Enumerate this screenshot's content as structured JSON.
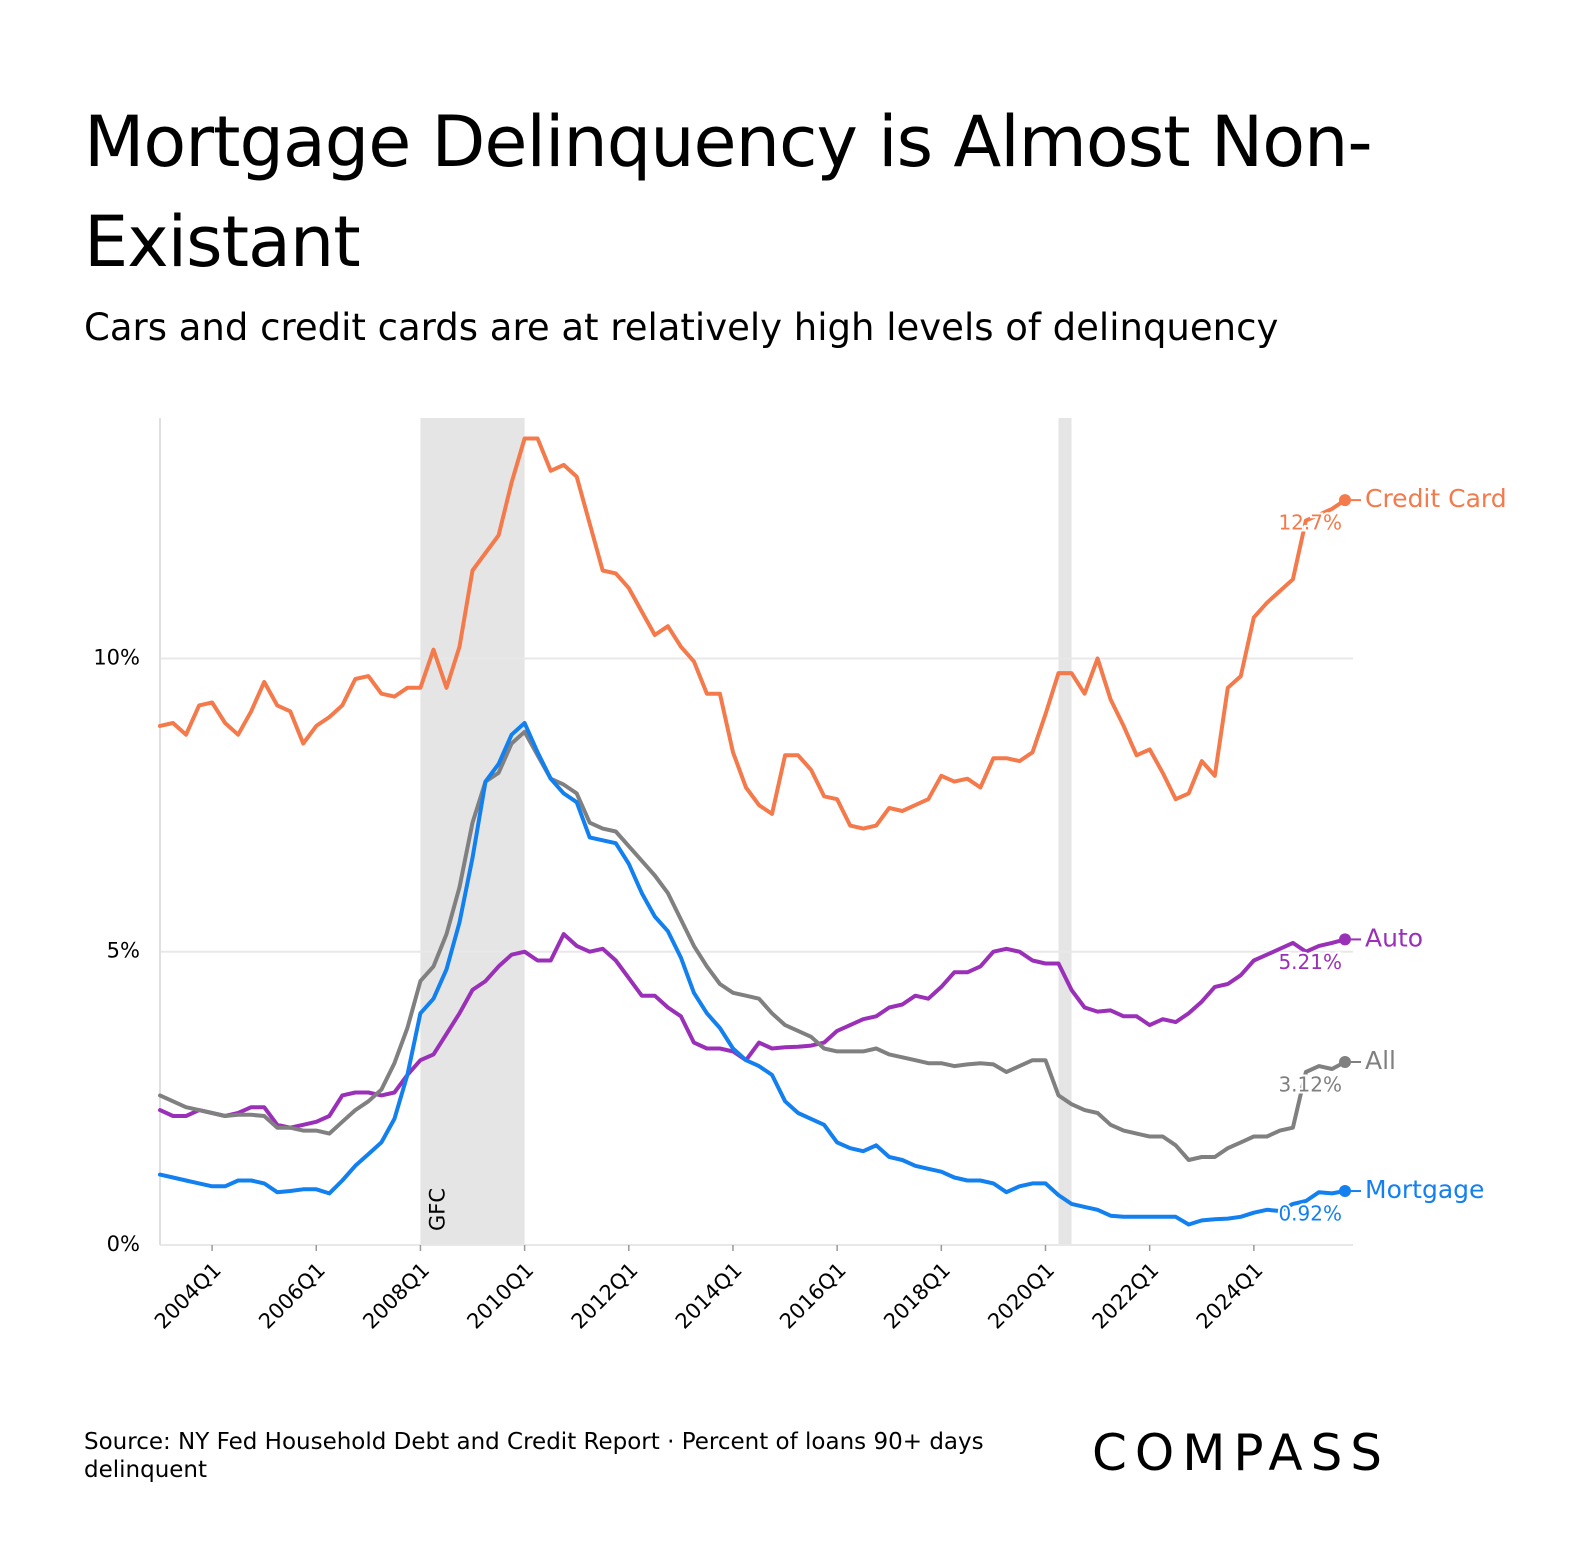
{
  "chart_data": {
    "type": "line",
    "title": "Mortgage Delinquency is Almost Non-Existant",
    "subtitle": "Cars and credit cards are at relatively high levels of delinquency",
    "source": "Source: NY Fed Household Debt and Credit Report · Percent of loans 90+ days delinquent",
    "logo": "COMPASS",
    "x": [
      2003,
      2003.25,
      2003.5,
      2003.75,
      2004,
      2004.25,
      2004.5,
      2004.75,
      2005,
      2005.25,
      2005.5,
      2005.75,
      2006,
      2006.25,
      2006.5,
      2006.75,
      2007,
      2007.25,
      2007.5,
      2007.75,
      2008,
      2008.25,
      2008.5,
      2008.75,
      2009,
      2009.25,
      2009.5,
      2009.75,
      2010,
      2010.25,
      2010.5,
      2010.75,
      2011,
      2011.25,
      2011.5,
      2011.75,
      2012,
      2012.25,
      2012.5,
      2012.75,
      2013,
      2013.25,
      2013.5,
      2013.75,
      2014,
      2014.25,
      2014.5,
      2014.75,
      2015,
      2015.25,
      2015.5,
      2015.75,
      2016,
      2016.25,
      2016.5,
      2016.75,
      2017,
      2017.25,
      2017.5,
      2017.75,
      2018,
      2018.25,
      2018.5,
      2018.75,
      2019,
      2019.25,
      2019.5,
      2019.75,
      2020,
      2020.25,
      2020.5,
      2020.75,
      2021,
      2021.25,
      2021.5,
      2021.75,
      2022,
      2022.25,
      2022.5,
      2022.75,
      2023,
      2023.25,
      2023.5,
      2023.75,
      2024,
      2024.25,
      2024.5,
      2024.75,
      2025,
      2025.25,
      2025.5,
      2025.75
    ],
    "xlim": [
      2003,
      2025.75
    ],
    "xticks": [
      {
        "value": 2004,
        "label": "2004Q1"
      },
      {
        "value": 2006,
        "label": "2006Q1"
      },
      {
        "value": 2008,
        "label": "2008Q1"
      },
      {
        "value": 2010,
        "label": "2010Q1"
      },
      {
        "value": 2012,
        "label": "2012Q1"
      },
      {
        "value": 2014,
        "label": "2014Q1"
      },
      {
        "value": 2016,
        "label": "2016Q1"
      },
      {
        "value": 2018,
        "label": "2018Q1"
      },
      {
        "value": 2020,
        "label": "2020Q1"
      },
      {
        "value": 2022,
        "label": "2022Q1"
      },
      {
        "value": 2024,
        "label": "2024Q1"
      }
    ],
    "ylim": [
      0,
      14.1
    ],
    "yticks": [
      {
        "value": 0,
        "label": "0%"
      },
      {
        "value": 5,
        "label": "5%"
      },
      {
        "value": 10,
        "label": "10%"
      }
    ],
    "grid": true,
    "shaded_regions": [
      {
        "x0": 2008,
        "x1": 2010,
        "label": "GFC"
      },
      {
        "x0": 2020.25,
        "x1": 2020.5
      }
    ],
    "series": [
      {
        "name": "Auto",
        "color": "#9b30b8",
        "end_label": "5.21%",
        "values": [
          2.3,
          2.2,
          2.2,
          2.3,
          2.25,
          2.2,
          2.25,
          2.35,
          2.35,
          2.05,
          2.0,
          2.05,
          2.1,
          2.2,
          2.55,
          2.6,
          2.6,
          2.55,
          2.6,
          2.9,
          3.15,
          3.25,
          3.6,
          3.95,
          4.35,
          4.5,
          4.75,
          4.95,
          5.0,
          4.85,
          4.85,
          5.3,
          5.1,
          5.0,
          5.05,
          4.85,
          4.55,
          4.25,
          4.25,
          4.05,
          3.9,
          3.45,
          3.35,
          3.35,
          3.3,
          3.15,
          3.45,
          3.35,
          3.37,
          3.38,
          3.4,
          3.45,
          3.65,
          3.75,
          3.85,
          3.9,
          4.05,
          4.1,
          4.25,
          4.2,
          4.4,
          4.65,
          4.65,
          4.75,
          5.0,
          5.05,
          5.0,
          4.85,
          4.8,
          4.8,
          4.35,
          4.05,
          3.98,
          4.0,
          3.9,
          3.9,
          3.75,
          3.85,
          3.8,
          3.95,
          4.15,
          4.4,
          4.45,
          4.6,
          4.85,
          4.95,
          5.05,
          5.15,
          5.0,
          5.1,
          5.15,
          5.21
        ]
      },
      {
        "name": "All",
        "color": "#808080",
        "end_label": "3.12%",
        "values": [
          2.55,
          2.45,
          2.35,
          2.3,
          2.25,
          2.2,
          2.22,
          2.22,
          2.2,
          2.0,
          2.0,
          1.95,
          1.95,
          1.9,
          2.1,
          2.3,
          2.45,
          2.65,
          3.1,
          3.7,
          4.5,
          4.75,
          5.3,
          6.1,
          7.2,
          7.9,
          8.05,
          8.55,
          8.75,
          8.35,
          7.95,
          7.85,
          7.7,
          7.2,
          7.1,
          7.05,
          6.8,
          6.55,
          6.3,
          6.0,
          5.55,
          5.1,
          4.75,
          4.45,
          4.3,
          4.25,
          4.2,
          3.95,
          3.75,
          3.65,
          3.55,
          3.35,
          3.3,
          3.3,
          3.3,
          3.35,
          3.25,
          3.2,
          3.15,
          3.1,
          3.1,
          3.05,
          3.08,
          3.1,
          3.08,
          2.95,
          3.05,
          3.15,
          3.15,
          2.55,
          2.4,
          2.3,
          2.25,
          2.05,
          1.95,
          1.9,
          1.85,
          1.85,
          1.7,
          1.45,
          1.5,
          1.5,
          1.65,
          1.75,
          1.85,
          1.85,
          1.95,
          2.0,
          2.95,
          3.05,
          3.0,
          3.12
        ]
      },
      {
        "name": "Mortgage",
        "color": "#1380f0",
        "end_label": "0.92%",
        "values": [
          1.2,
          1.15,
          1.1,
          1.05,
          1.0,
          1.0,
          1.1,
          1.1,
          1.05,
          0.9,
          0.92,
          0.95,
          0.95,
          0.88,
          1.1,
          1.35,
          1.55,
          1.75,
          2.15,
          2.9,
          3.95,
          4.2,
          4.7,
          5.5,
          6.6,
          7.9,
          8.2,
          8.7,
          8.9,
          8.4,
          7.95,
          7.7,
          7.55,
          6.95,
          6.9,
          6.85,
          6.5,
          6.0,
          5.6,
          5.35,
          4.9,
          4.3,
          3.95,
          3.7,
          3.35,
          3.15,
          3.05,
          2.9,
          2.45,
          2.25,
          2.15,
          2.05,
          1.75,
          1.65,
          1.6,
          1.7,
          1.5,
          1.45,
          1.35,
          1.3,
          1.25,
          1.15,
          1.1,
          1.1,
          1.05,
          0.9,
          1.0,
          1.05,
          1.05,
          0.85,
          0.7,
          0.65,
          0.6,
          0.5,
          0.48,
          0.48,
          0.48,
          0.48,
          0.48,
          0.35,
          0.42,
          0.44,
          0.45,
          0.48,
          0.55,
          0.6,
          0.58,
          0.7,
          0.75,
          0.9,
          0.88,
          0.92
        ]
      },
      {
        "name": "Credit Card",
        "color": "#f47a4b",
        "end_label": "12.7%",
        "values": [
          8.85,
          8.9,
          8.7,
          9.2,
          9.25,
          8.9,
          8.7,
          9.1,
          9.6,
          9.2,
          9.1,
          8.55,
          8.85,
          9.0,
          9.2,
          9.65,
          9.7,
          9.4,
          9.35,
          9.5,
          9.5,
          10.15,
          9.5,
          10.2,
          11.5,
          11.8,
          12.1,
          13.0,
          13.75,
          13.75,
          13.2,
          13.3,
          13.1,
          12.3,
          11.5,
          11.45,
          11.2,
          10.8,
          10.4,
          10.55,
          10.2,
          9.95,
          9.4,
          9.4,
          8.4,
          7.8,
          7.5,
          7.35,
          8.35,
          8.35,
          8.1,
          7.65,
          7.6,
          7.15,
          7.1,
          7.15,
          7.45,
          7.4,
          7.5,
          7.6,
          8.0,
          7.9,
          7.95,
          7.8,
          8.3,
          8.3,
          8.25,
          8.4,
          9.05,
          9.75,
          9.75,
          9.4,
          10.0,
          9.3,
          8.85,
          8.35,
          8.45,
          8.05,
          7.6,
          7.7,
          8.25,
          8.0,
          9.5,
          9.7,
          10.7,
          10.95,
          11.15,
          11.35,
          12.35,
          12.45,
          12.55,
          12.7
        ]
      }
    ]
  }
}
